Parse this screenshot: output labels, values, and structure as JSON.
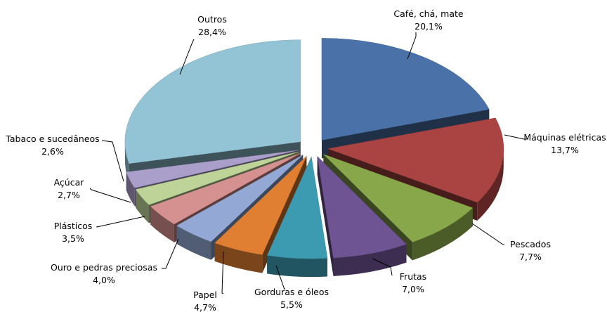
{
  "chart_data": {
    "type": "pie",
    "title": "",
    "three_d": true,
    "exploded": true,
    "legend": "none",
    "slices": [
      {
        "label": "Café, chá, mate",
        "value_label": "20,1%",
        "value": 20.1,
        "color": "#4A72A9"
      },
      {
        "label": "Máquinas elétricas",
        "value_label": "13,7%",
        "value": 13.7,
        "color": "#AA4442"
      },
      {
        "label": "Pescados",
        "value_label": "7,7%",
        "value": 7.7,
        "color": "#88A74A"
      },
      {
        "label": "Frutas",
        "value_label": "7,0%",
        "value": 7.0,
        "color": "#6F5494"
      },
      {
        "label": "Gorduras e óleos",
        "value_label": "5,5%",
        "value": 5.5,
        "color": "#3C9AB1"
      },
      {
        "label": "Papel",
        "value_label": "4,7%",
        "value": 4.7,
        "color": "#E07E32"
      },
      {
        "label": "Ouro e pedras preciosas",
        "value_label": "4,0%",
        "value": 4.0,
        "color": "#93A8D5"
      },
      {
        "label": "Plásticos",
        "value_label": "3,5%",
        "value": 3.5,
        "color": "#D59190"
      },
      {
        "label": "Açúcar",
        "value_label": "2,7%",
        "value": 2.7,
        "color": "#BDD398"
      },
      {
        "label": "Tabaco e sucedâneos",
        "value_label": "2,6%",
        "value": 2.6,
        "color": "#AA9ECA"
      },
      {
        "label": "Outros",
        "value_label": "28,4%",
        "value": 28.4,
        "color": "#93C4D6"
      }
    ]
  }
}
